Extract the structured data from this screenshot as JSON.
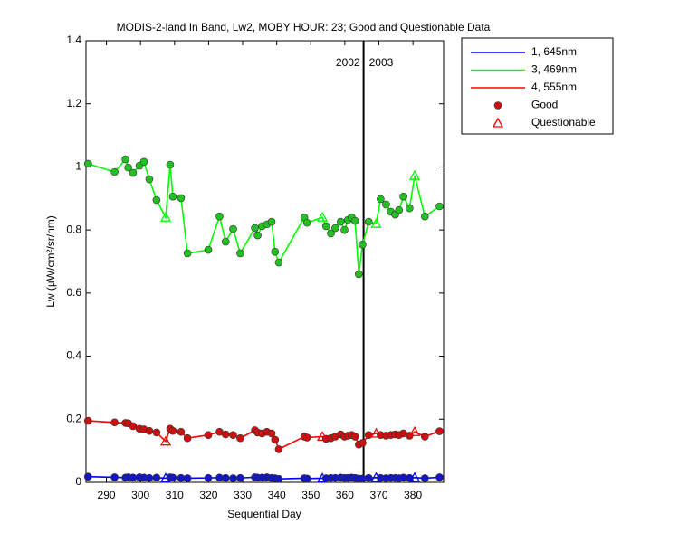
{
  "chart_data": {
    "type": "line",
    "title": "MODIS-2-land In Band,  Lw2, MOBY HOUR: 23;  Good and Questionable Data",
    "xlabel": "Sequential Day",
    "ylabel": "Lw (µW/cm²/sr/nm)",
    "x": [
      284.6,
      292.4,
      295.6,
      296.4,
      297.8,
      299.7,
      301,
      302.6,
      304.7,
      307.4,
      308.7,
      309.5,
      311.9,
      313.8,
      319.9,
      323.2,
      325,
      327.2,
      329.3,
      333.6,
      334.4,
      335.7,
      337.1,
      338.5,
      339.5,
      340.6,
      348.1,
      348.9,
      353.4,
      354.5,
      355.9,
      357.2,
      358.8,
      359.9,
      360.9,
      362,
      363,
      364.1,
      365.2,
      367,
      369.2,
      370.5,
      372.1,
      373.5,
      374.8,
      375.9,
      377.2,
      379,
      380.5,
      383.5,
      387.8
    ],
    "questionable": [
      false,
      false,
      false,
      false,
      false,
      false,
      false,
      false,
      false,
      true,
      false,
      false,
      false,
      false,
      false,
      false,
      false,
      false,
      false,
      false,
      false,
      false,
      false,
      false,
      false,
      false,
      false,
      false,
      true,
      false,
      false,
      false,
      false,
      false,
      false,
      false,
      false,
      false,
      false,
      false,
      true,
      false,
      false,
      false,
      false,
      false,
      false,
      false,
      true,
      false,
      false
    ],
    "series": [
      {
        "name": "1, 645nm",
        "color": "#0000ff",
        "marker_color": "#1515c8",
        "values": [
          0.018,
          0.016,
          0.015,
          0.016,
          0.015,
          0.016,
          0.015,
          0.014,
          0.015,
          0.013,
          0.016,
          0.015,
          0.014,
          0.013,
          0.014,
          0.015,
          0.014,
          0.013,
          0.014,
          0.016,
          0.015,
          0.015,
          0.016,
          0.014,
          0.013,
          0.011,
          0.013,
          0.012,
          0.013,
          0.013,
          0.014,
          0.014,
          0.015,
          0.014,
          0.014,
          0.015,
          0.014,
          0.012,
          0.012,
          0.014,
          0.015,
          0.014,
          0.013,
          0.014,
          0.014,
          0.013,
          0.015,
          0.014,
          0.015,
          0.013,
          0.016
        ]
      },
      {
        "name": "3, 469nm",
        "color": "#00ff00",
        "marker_color": "#22c022",
        "values": [
          1.01,
          0.984,
          1.024,
          0.998,
          0.981,
          1.004,
          1.016,
          0.961,
          0.895,
          0.84,
          1.007,
          0.906,
          0.901,
          0.726,
          0.737,
          0.843,
          0.763,
          0.803,
          0.726,
          0.806,
          0.783,
          0.812,
          0.818,
          0.826,
          0.731,
          0.697,
          0.84,
          0.823,
          0.84,
          0.812,
          0.789,
          0.806,
          0.826,
          0.8,
          0.832,
          0.84,
          0.829,
          0.66,
          0.754,
          0.826,
          0.82,
          0.898,
          0.881,
          0.858,
          0.849,
          0.863,
          0.906,
          0.869,
          0.972,
          0.843,
          0.875
        ]
      },
      {
        "name": "4, 555nm",
        "color": "#ff0000",
        "marker_color": "#cc1010",
        "values": [
          0.195,
          0.19,
          0.188,
          0.187,
          0.178,
          0.17,
          0.168,
          0.163,
          0.158,
          0.13,
          0.17,
          0.163,
          0.16,
          0.14,
          0.15,
          0.16,
          0.152,
          0.15,
          0.14,
          0.165,
          0.158,
          0.155,
          0.16,
          0.155,
          0.135,
          0.105,
          0.145,
          0.142,
          0.145,
          0.138,
          0.14,
          0.145,
          0.152,
          0.145,
          0.148,
          0.15,
          0.145,
          0.12,
          0.125,
          0.15,
          0.155,
          0.15,
          0.148,
          0.15,
          0.152,
          0.15,
          0.155,
          0.148,
          0.16,
          0.145,
          0.162
        ]
      }
    ],
    "markers": [
      {
        "name": "Good",
        "symbol": "circle",
        "color": "#cc1010"
      },
      {
        "name": "Questionable",
        "symbol": "triangle",
        "color": "#ff0000"
      }
    ],
    "year_boundary": 365.5,
    "annotations": [
      "2002",
      "2003"
    ],
    "xlim": [
      284,
      389
    ],
    "xticks": [
      290,
      300,
      310,
      320,
      330,
      340,
      350,
      360,
      370,
      380
    ],
    "ylim": [
      0,
      1.4
    ],
    "yticks": [
      0,
      0.2,
      0.4,
      0.6,
      0.8,
      1,
      1.2,
      1.4
    ],
    "legend": "outside-top-right"
  }
}
